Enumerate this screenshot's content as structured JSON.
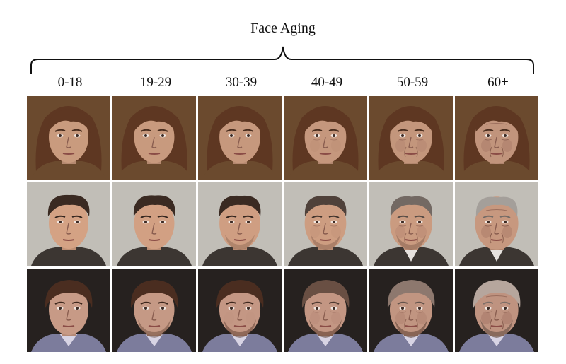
{
  "figure": {
    "title": "Face Aging"
  },
  "age_groups": [
    "0-18",
    "19-29",
    "30-39",
    "40-49",
    "50-59",
    "60+"
  ],
  "rows": [
    {
      "id": "woman",
      "aging": [
        0.0,
        0.15,
        0.3,
        0.45,
        0.62,
        0.8
      ],
      "palette": {
        "background": "#6b4a2e",
        "skin": "#c99b7e",
        "hair": "#5e3722",
        "clothing": "#6b4a2e"
      }
    },
    {
      "id": "young-man",
      "aging": [
        0.0,
        0.15,
        0.3,
        0.45,
        0.62,
        0.85
      ],
      "palette": {
        "background": "#c9c6bf",
        "skin": "#d4a284",
        "hair": "#3a2a22",
        "gray_hair": "#b9b6b2",
        "clothing": "#3c3632"
      }
    },
    {
      "id": "boy",
      "aging": [
        0.0,
        0.18,
        0.35,
        0.5,
        0.68,
        0.88
      ],
      "palette": {
        "background": "#26211f",
        "skin": "#c79a86",
        "hair": "#4a2d20",
        "gray_hair": "#c4b6ad",
        "clothing": "#7c7c9c"
      }
    }
  ]
}
